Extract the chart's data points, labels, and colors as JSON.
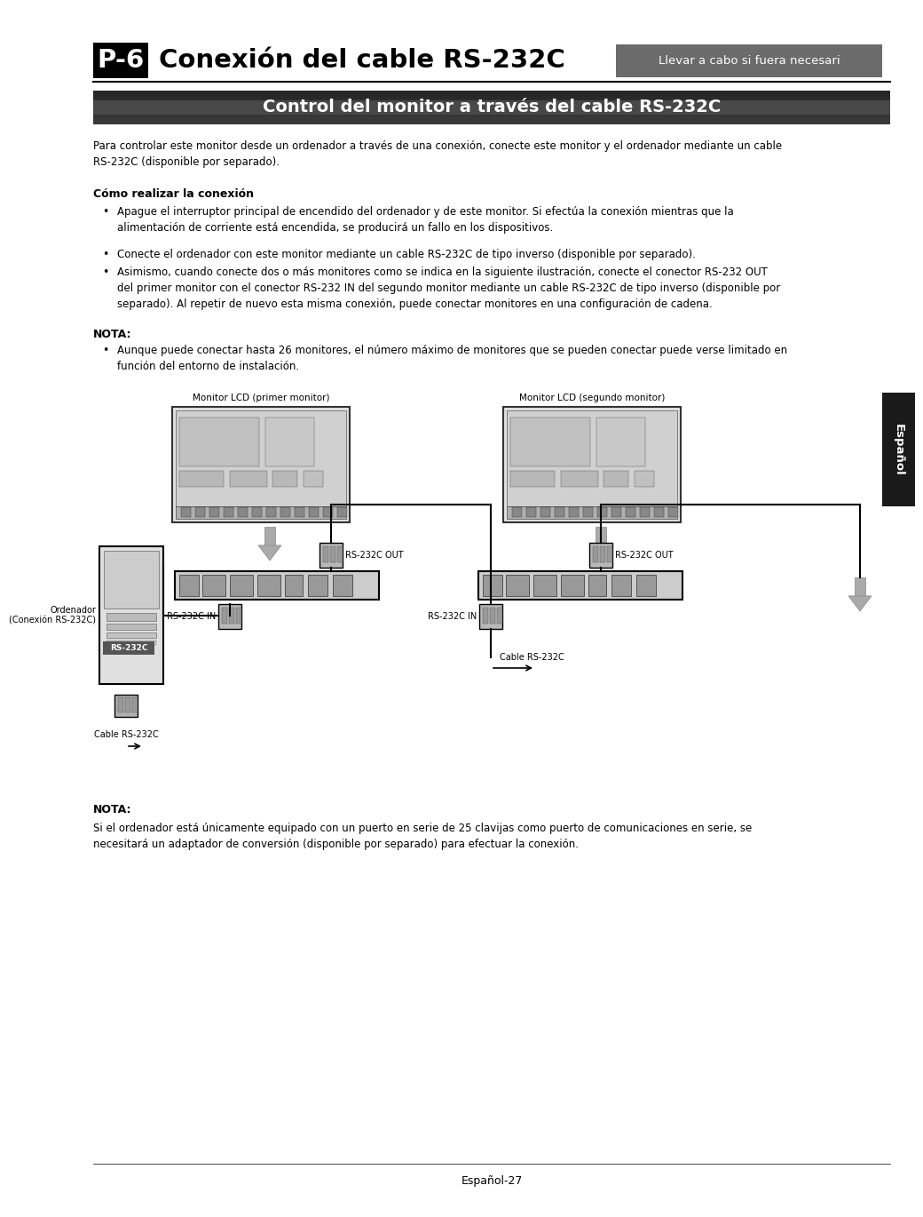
{
  "title_box_text": "P-6",
  "title_main": "Conexión del cable RS-232C",
  "title_tag": "Llevar a cabo si fuera necesari",
  "section_header": "Control del monitor a través del cable RS-232C",
  "body_text_1": "Para controlar este monitor desde un ordenador a través de una conexión, conecte este monitor y el ordenador mediante un cable\nRS-232C (disponible por separado).",
  "subheader_1": "Cómo realizar la conexión",
  "bullet1": "Apague el interruptor principal de encendido del ordenador y de este monitor. Si efectúa la conexión mientras que la\nalimentación de corriente está encendida, se producirá un fallo en los dispositivos.",
  "bullet2": "Conecte el ordenador con este monitor mediante un cable RS-232C de tipo inverso (disponible por separado).",
  "bullet3": "Asimismo, cuando conecte dos o más monitores como se indica en la siguiente ilustración, conecte el conector RS-232 OUT\ndel primer monitor con el conector RS-232 IN del segundo monitor mediante un cable RS-232C de tipo inverso (disponible por\nseparado). Al repetir de nuevo esta misma conexión, puede conectar monitores en una configuración de cadena.",
  "nota_header1": "NOTA:",
  "nota_bullet1": "Aunque puede conectar hasta 26 monitores, el número máximo de monitores que se pueden conectar puede verse limitado en\nfunción del entorno de instalación.",
  "diagram_label_monitor1": "Monitor LCD (primer monitor)",
  "diagram_label_monitor2": "Monitor LCD (segundo monitor)",
  "diagram_label_pc": "Ordenador\n(Conexión RS-232C)",
  "diagram_label_rs232c": "RS-232C",
  "diagram_label_cable1": "Cable RS-232C",
  "diagram_label_cable2": "Cable RS-232C",
  "diagram_label_in1": "RS-232C IN",
  "diagram_label_out1": "RS-232C OUT",
  "diagram_label_in2": "RS-232C IN",
  "diagram_label_out2": "RS-232C OUT",
  "espanol_tab": "Español",
  "nota_header2": "NOTA:",
  "nota_text2": "Si el ordenador está únicamente equipado con un puerto en serie de 25 clavijas como puerto de comunicaciones en serie, se\nnecesitará un adaptador de conversión (disponible por separado) para efectuar la conexión.",
  "footer_text": "Español-27",
  "bg_color": "#ffffff",
  "text_color": "#000000",
  "tag_bg": "#6b6b6b",
  "tag_text_color": "#ffffff",
  "title_box_bg": "#000000",
  "espanol_bg": "#1a1a1a"
}
